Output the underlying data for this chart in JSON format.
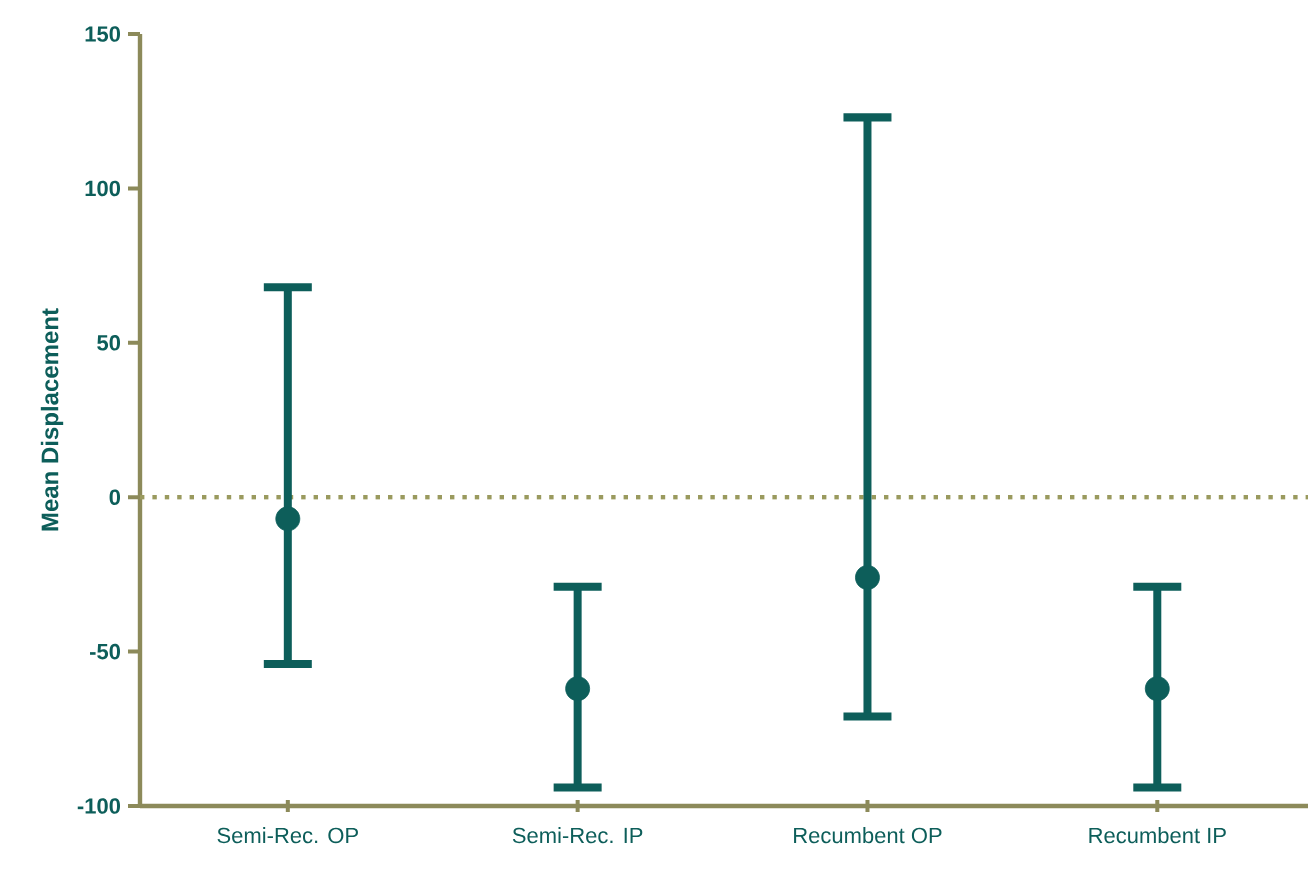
{
  "chart_data": {
    "type": "scatter",
    "ylabel": "Mean Displacement",
    "categories": [
      "Semi-Rec. OP",
      "Semi-Rec. IP",
      "Recumbent OP",
      "Recumbent IP"
    ],
    "values": [
      -7,
      -62,
      -26,
      -62
    ],
    "errors": [
      [
        -54,
        68
      ],
      [
        -94,
        -29
      ],
      [
        -71,
        123
      ],
      [
        -94,
        -29
      ]
    ],
    "color": "#0d5e5a",
    "marker": "circle",
    "ylim": [
      -100,
      150
    ],
    "yticks": [
      -100,
      -50,
      0,
      50,
      100,
      150
    ],
    "ref_lines": [
      {
        "axis": "y",
        "value": 0,
        "color": "#9a9a5e",
        "line_style": "dotted"
      }
    ],
    "grid": false
  }
}
